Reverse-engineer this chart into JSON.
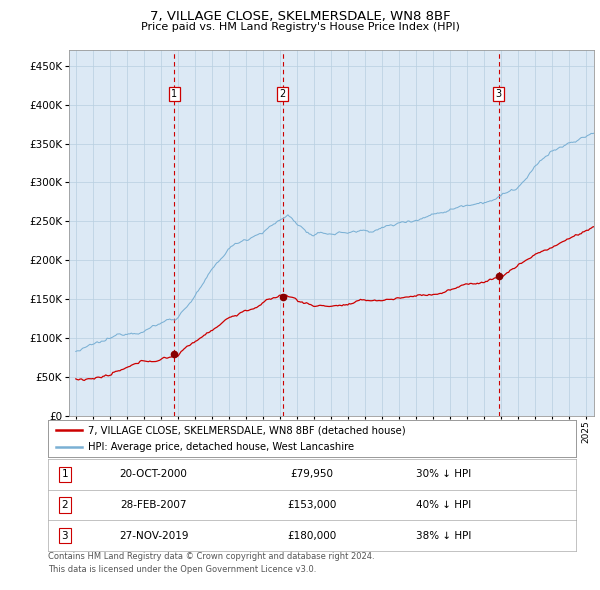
{
  "title": "7, VILLAGE CLOSE, SKELMERSDALE, WN8 8BF",
  "subtitle": "Price paid vs. HM Land Registry's House Price Index (HPI)",
  "legend_line1": "7, VILLAGE CLOSE, SKELMERSDALE, WN8 8BF (detached house)",
  "legend_line2": "HPI: Average price, detached house, West Lancashire",
  "footer_line1": "Contains HM Land Registry data © Crown copyright and database right 2024.",
  "footer_line2": "This data is licensed under the Open Government Licence v3.0.",
  "transactions": [
    {
      "id": 1,
      "date_yr": 2000.8,
      "price": 79950,
      "label": "20-OCT-2000",
      "pct": "30%",
      "dir": "↓"
    },
    {
      "id": 2,
      "date_yr": 2007.17,
      "price": 153000,
      "label": "28-FEB-2007",
      "pct": "40%",
      "dir": "↓"
    },
    {
      "id": 3,
      "date_yr": 2019.9,
      "price": 180000,
      "label": "27-NOV-2019",
      "pct": "38%",
      "dir": "↓"
    }
  ],
  "hpi_color": "#7ab0d4",
  "price_color": "#cc0000",
  "dot_color": "#880000",
  "bg_color": "#dce9f5",
  "grid_color": "#b8cfe0",
  "vline_color": "#cc0000",
  "ylim": [
    0,
    470000
  ],
  "yticks": [
    0,
    50000,
    100000,
    150000,
    200000,
    250000,
    300000,
    350000,
    400000,
    450000
  ],
  "xstart": 1994.6,
  "xend": 2025.5
}
